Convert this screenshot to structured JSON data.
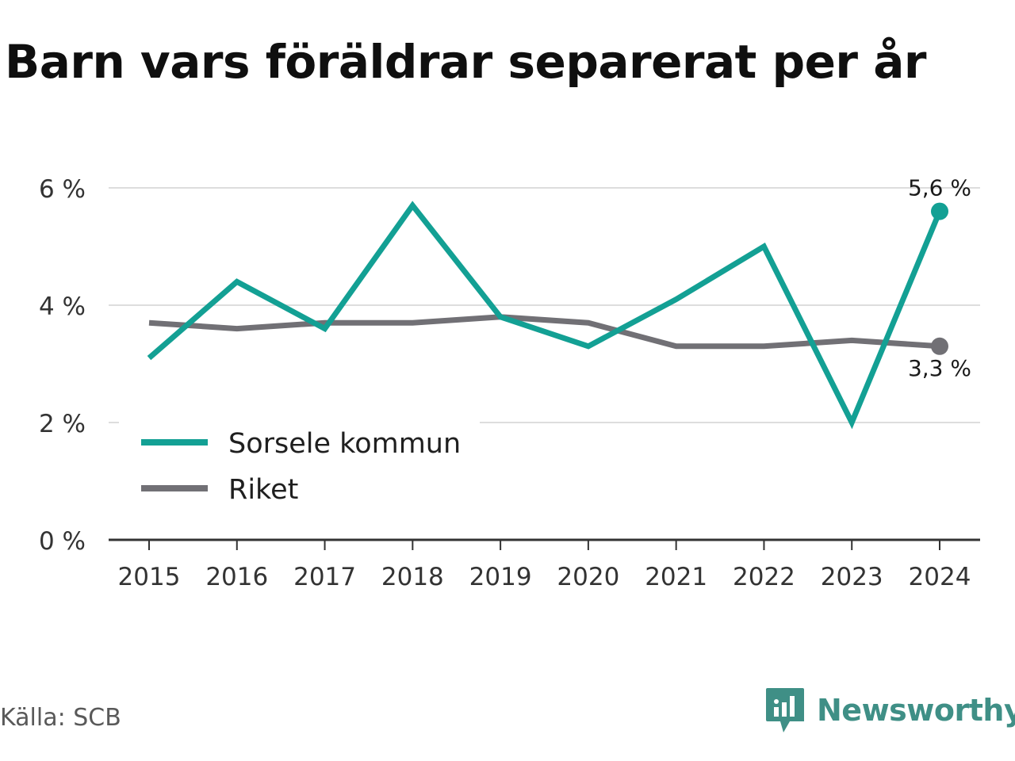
{
  "title": "Barn vars föräldrar separerat per år",
  "source": "Källa: SCB",
  "brand": {
    "name": "Newsworthy",
    "logo_icon": "newsworthy-logo-icon",
    "color": "#3f8f86"
  },
  "colors": {
    "sorsele": "#13a094",
    "riket": "#717075",
    "grid": "#dddddd",
    "axis": "#333333"
  },
  "chart_data": {
    "type": "line",
    "title": "Barn vars föräldrar separerat per år",
    "x": [
      "2015",
      "2016",
      "2017",
      "2018",
      "2019",
      "2020",
      "2021",
      "2022",
      "2023",
      "2024"
    ],
    "ylim": [
      0,
      6
    ],
    "yticks": [
      0,
      2,
      4,
      6
    ],
    "ytick_labels": [
      "0 %",
      "2 %",
      "4 %",
      "6 %"
    ],
    "grid": true,
    "legend_position": "bottom-left",
    "series": [
      {
        "name": "Sorsele kommun",
        "values": [
          3.1,
          4.4,
          3.6,
          5.7,
          3.8,
          3.3,
          4.1,
          5.0,
          2.0,
          5.6
        ],
        "end_label": "5,6 %"
      },
      {
        "name": "Riket",
        "values": [
          3.7,
          3.6,
          3.7,
          3.7,
          3.8,
          3.7,
          3.3,
          3.3,
          3.4,
          3.3
        ],
        "end_label": "3,3 %"
      }
    ]
  }
}
